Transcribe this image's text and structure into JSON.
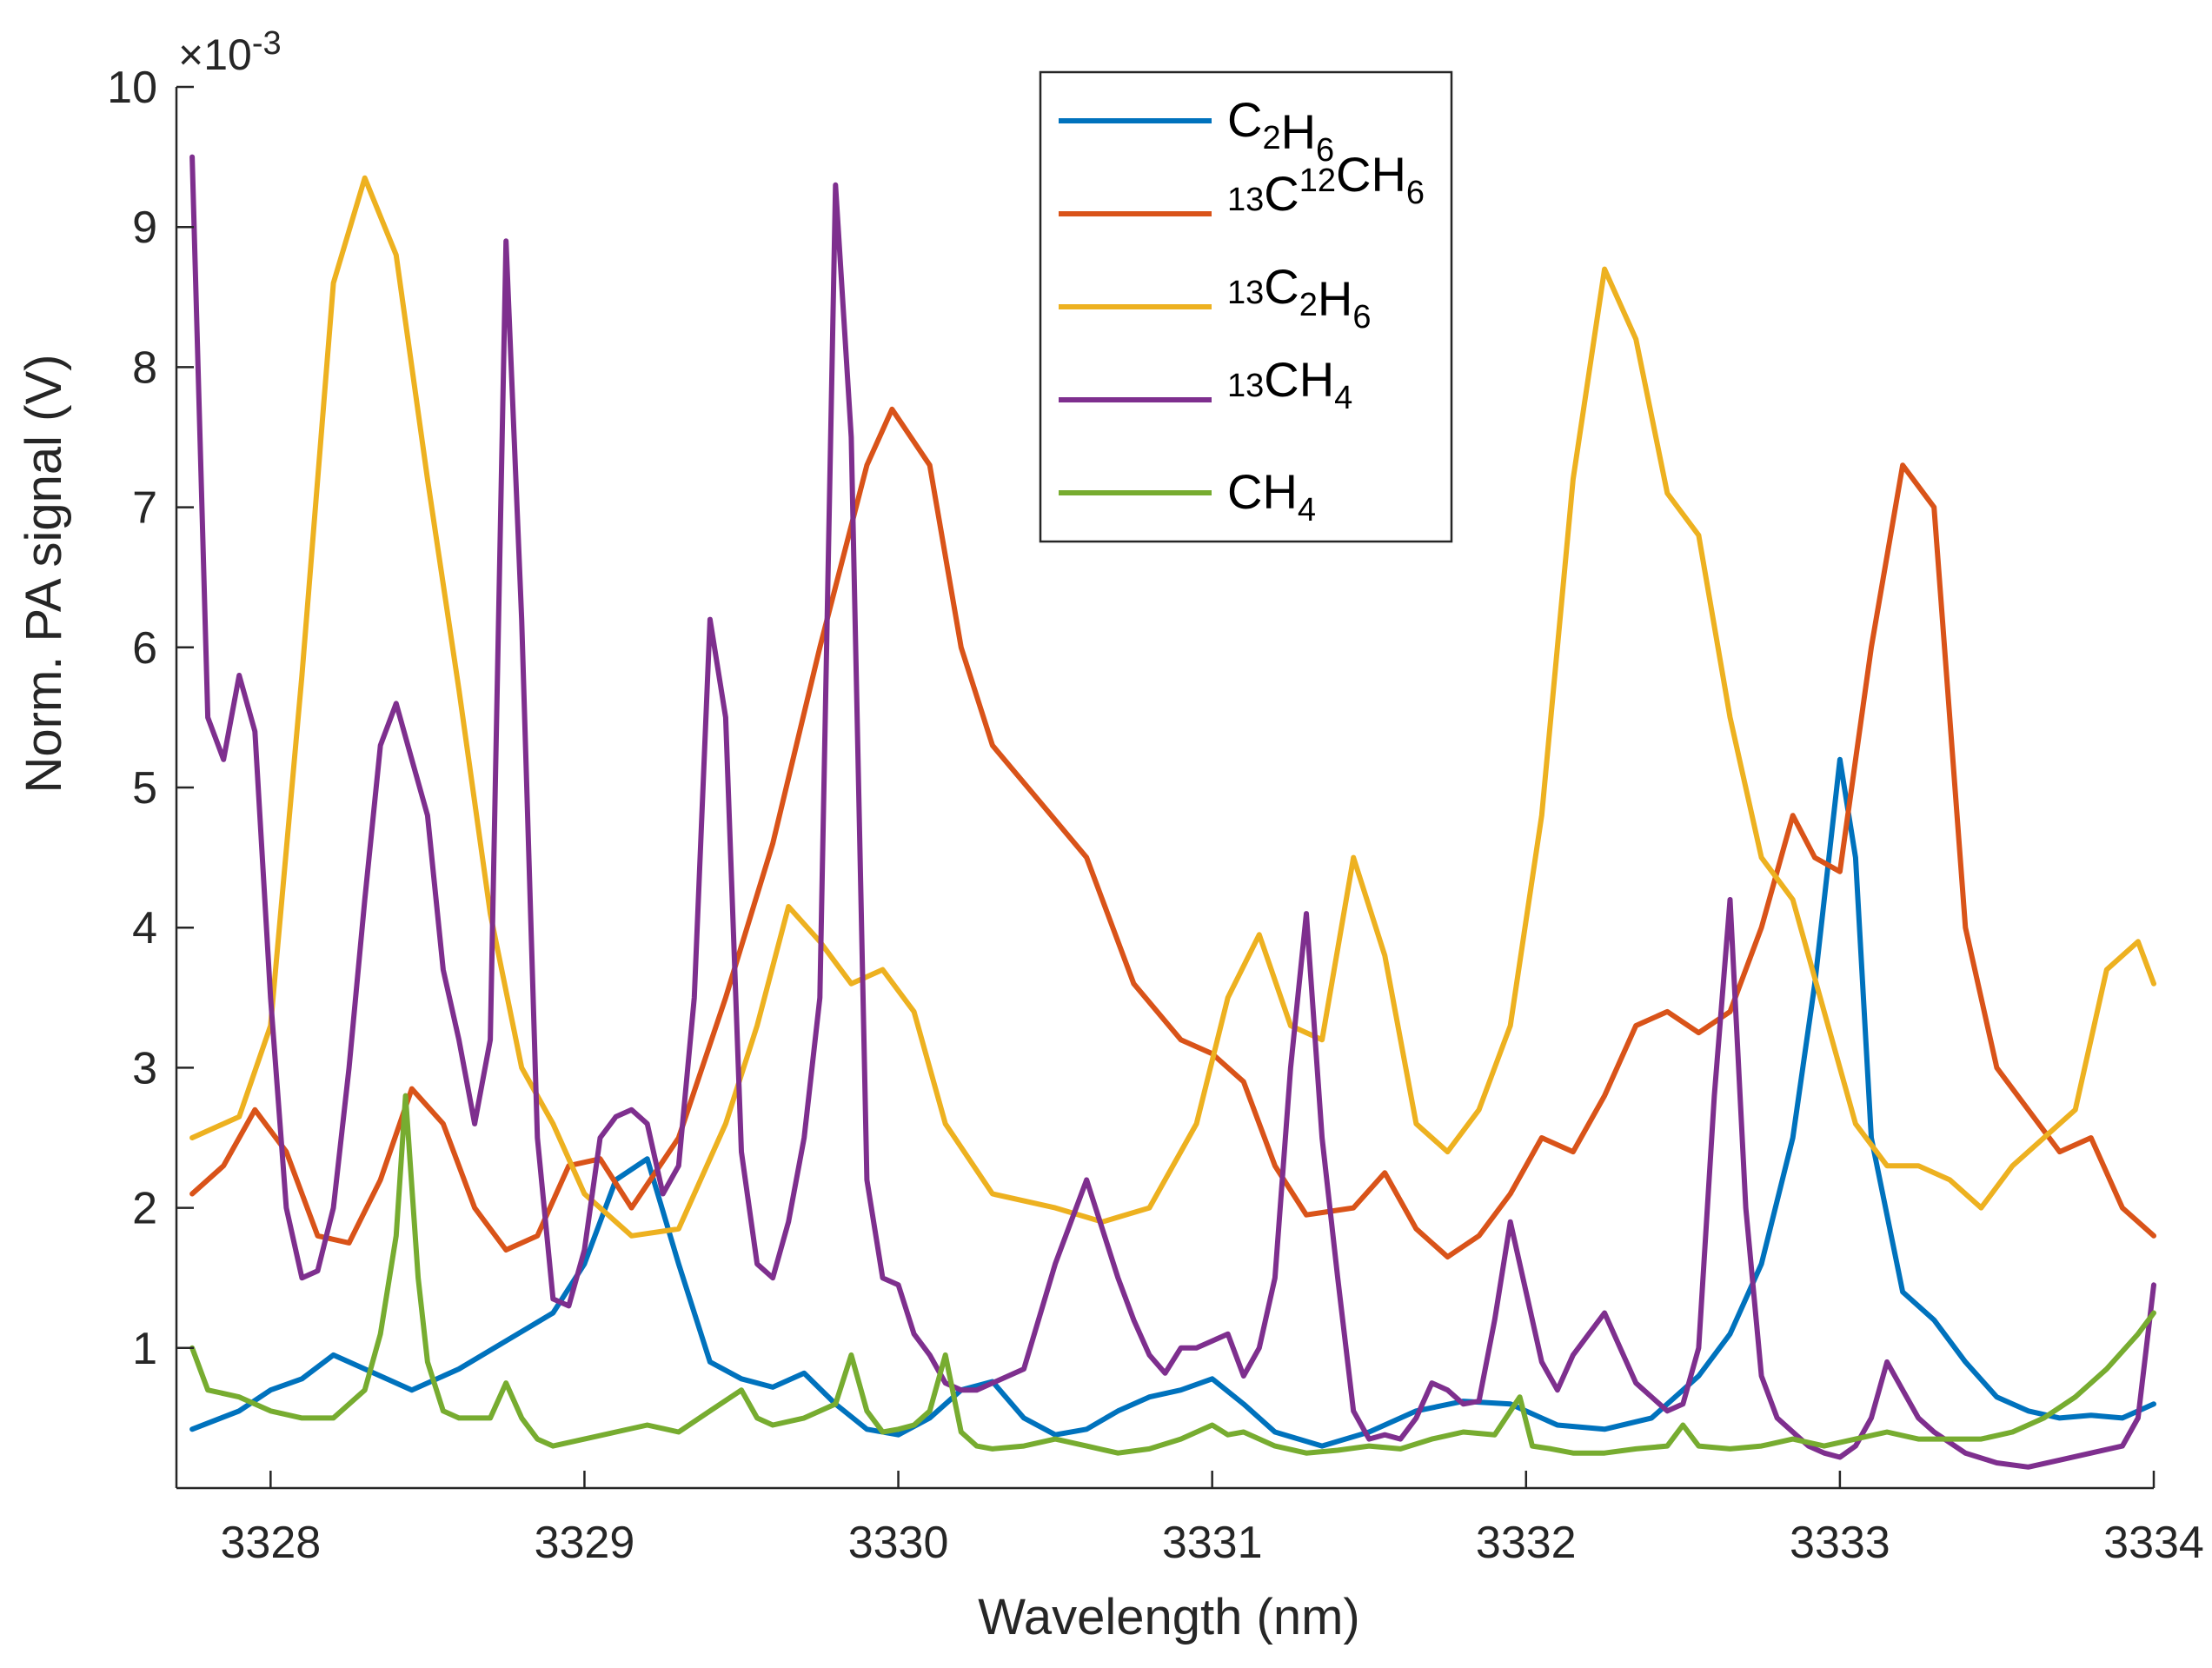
{
  "chart_data": {
    "type": "line",
    "title": "",
    "xlabel": "Wavelength (nm)",
    "ylabel": "Norm. PA signal (V)",
    "y_scale_base": "×10",
    "y_scale_exponent": "-3",
    "xlim": [
      3327.7,
      3334.0
    ],
    "ylim": [
      0,
      10
    ],
    "xticks": [
      3328,
      3329,
      3330,
      3331,
      3332,
      3333,
      3334
    ],
    "yticks": [
      1,
      2,
      3,
      4,
      5,
      6,
      7,
      8,
      9,
      10
    ],
    "legend_position": "top-center",
    "series": [
      {
        "name_base": "C",
        "name_parts": [
          [
            "C",
            ""
          ],
          [
            "2",
            "sub"
          ],
          [
            "H",
            ""
          ],
          [
            "6",
            "sub"
          ]
        ],
        "name": "C2H6",
        "color": "#0072BD",
        "x": [
          3327.75,
          3327.9,
          3328.0,
          3328.1,
          3328.2,
          3328.3,
          3328.45,
          3328.6,
          3328.75,
          3328.9,
          3329.0,
          3329.1,
          3329.2,
          3329.3,
          3329.4,
          3329.5,
          3329.6,
          3329.7,
          3329.8,
          3329.9,
          3330.0,
          3330.1,
          3330.2,
          3330.3,
          3330.4,
          3330.5,
          3330.6,
          3330.7,
          3330.8,
          3330.9,
          3331.0,
          3331.1,
          3331.2,
          3331.35,
          3331.5,
          3331.65,
          3331.8,
          3331.95,
          3332.1,
          3332.25,
          3332.4,
          3332.55,
          3332.65,
          3332.75,
          3332.85,
          3332.92,
          3333.0,
          3333.05,
          3333.1,
          3333.2,
          3333.3,
          3333.4,
          3333.5,
          3333.6,
          3333.7,
          3333.8,
          3333.9,
          3334.0
        ],
        "y": [
          0.42,
          0.55,
          0.7,
          0.78,
          0.95,
          0.85,
          0.7,
          0.85,
          1.05,
          1.25,
          1.6,
          2.2,
          2.35,
          1.6,
          0.9,
          0.78,
          0.72,
          0.82,
          0.6,
          0.42,
          0.38,
          0.5,
          0.7,
          0.76,
          0.5,
          0.38,
          0.42,
          0.55,
          0.65,
          0.7,
          0.78,
          0.6,
          0.4,
          0.3,
          0.4,
          0.55,
          0.62,
          0.6,
          0.45,
          0.42,
          0.5,
          0.8,
          1.1,
          1.6,
          2.5,
          3.6,
          5.2,
          4.5,
          2.5,
          1.4,
          1.2,
          0.9,
          0.65,
          0.55,
          0.5,
          0.52,
          0.5,
          0.6
        ]
      },
      {
        "name": "13C12CH6",
        "name_parts": [
          [
            "13",
            "sup"
          ],
          [
            "C",
            ""
          ],
          [
            "12",
            "sup"
          ],
          [
            "CH",
            ""
          ],
          [
            "6",
            "sub"
          ]
        ],
        "color": "#D95319",
        "x": [
          3327.75,
          3327.85,
          3327.95,
          3328.05,
          3328.15,
          3328.25,
          3328.35,
          3328.45,
          3328.55,
          3328.65,
          3328.75,
          3328.85,
          3328.95,
          3329.05,
          3329.15,
          3329.3,
          3329.45,
          3329.6,
          3329.75,
          3329.9,
          3329.98,
          3330.1,
          3330.2,
          3330.3,
          3330.45,
          3330.6,
          3330.75,
          3330.9,
          3331.0,
          3331.1,
          3331.2,
          3331.3,
          3331.45,
          3331.55,
          3331.65,
          3331.75,
          3331.85,
          3331.95,
          3332.05,
          3332.15,
          3332.25,
          3332.35,
          3332.45,
          3332.55,
          3332.65,
          3332.75,
          3332.85,
          3332.92,
          3333.0,
          3333.1,
          3333.2,
          3333.3,
          3333.4,
          3333.5,
          3333.6,
          3333.7,
          3333.8,
          3333.9,
          3334.0
        ],
        "y": [
          2.1,
          2.3,
          2.7,
          2.4,
          1.8,
          1.75,
          2.2,
          2.85,
          2.6,
          2.0,
          1.7,
          1.8,
          2.3,
          2.35,
          2.0,
          2.5,
          3.5,
          4.6,
          6.0,
          7.3,
          7.7,
          7.3,
          6.0,
          5.3,
          4.9,
          4.5,
          3.6,
          3.2,
          3.1,
          2.9,
          2.3,
          1.95,
          2.0,
          2.25,
          1.85,
          1.65,
          1.8,
          2.1,
          2.5,
          2.4,
          2.8,
          3.3,
          3.4,
          3.25,
          3.4,
          4.0,
          4.8,
          4.5,
          4.4,
          6.0,
          7.3,
          7.0,
          4.0,
          3.0,
          2.7,
          2.4,
          2.5,
          2.0,
          1.8
        ]
      },
      {
        "name": "13C2H6",
        "name_parts": [
          [
            "13",
            "sup"
          ],
          [
            "C",
            ""
          ],
          [
            "2",
            "sub"
          ],
          [
            "H",
            ""
          ],
          [
            "6",
            "sub"
          ]
        ],
        "color": "#EDB120",
        "x": [
          3327.75,
          3327.9,
          3328.0,
          3328.1,
          3328.2,
          3328.3,
          3328.4,
          3328.5,
          3328.6,
          3328.7,
          3328.8,
          3328.9,
          3329.0,
          3329.15,
          3329.3,
          3329.45,
          3329.55,
          3329.65,
          3329.75,
          3329.85,
          3329.95,
          3330.05,
          3330.15,
          3330.3,
          3330.5,
          3330.65,
          3330.8,
          3330.95,
          3331.05,
          3331.15,
          3331.25,
          3331.35,
          3331.45,
          3331.55,
          3331.65,
          3331.75,
          3331.85,
          3331.95,
          3332.05,
          3332.15,
          3332.25,
          3332.35,
          3332.45,
          3332.55,
          3332.65,
          3332.75,
          3332.85,
          3332.95,
          3333.05,
          3333.15,
          3333.25,
          3333.35,
          3333.45,
          3333.55,
          3333.65,
          3333.75,
          3333.85,
          3333.95,
          3334.0
        ],
        "y": [
          2.5,
          2.65,
          3.3,
          5.8,
          8.6,
          9.35,
          8.8,
          7.2,
          5.7,
          4.1,
          3.0,
          2.6,
          2.1,
          1.8,
          1.85,
          2.6,
          3.3,
          4.15,
          3.9,
          3.6,
          3.7,
          3.4,
          2.6,
          2.1,
          2.0,
          1.9,
          2.0,
          2.6,
          3.5,
          3.95,
          3.3,
          3.2,
          4.5,
          3.8,
          2.6,
          2.4,
          2.7,
          3.3,
          4.8,
          7.2,
          8.7,
          8.2,
          7.1,
          6.8,
          5.5,
          4.5,
          4.2,
          3.4,
          2.6,
          2.3,
          2.3,
          2.2,
          2.0,
          2.3,
          2.5,
          2.7,
          3.7,
          3.9,
          3.6
        ]
      },
      {
        "name": "13CH4",
        "name_parts": [
          [
            "13",
            "sup"
          ],
          [
            "CH",
            ""
          ],
          [
            "4",
            "sub"
          ]
        ],
        "color": "#7E2F8E",
        "x": [
          3327.75,
          3327.8,
          3327.85,
          3327.9,
          3327.95,
          3328.0,
          3328.05,
          3328.1,
          3328.15,
          3328.2,
          3328.25,
          3328.3,
          3328.35,
          3328.4,
          3328.45,
          3328.5,
          3328.55,
          3328.6,
          3328.65,
          3328.7,
          3328.75,
          3328.8,
          3328.85,
          3328.9,
          3328.95,
          3329.0,
          3329.05,
          3329.1,
          3329.15,
          3329.2,
          3329.25,
          3329.3,
          3329.35,
          3329.4,
          3329.45,
          3329.5,
          3329.55,
          3329.6,
          3329.65,
          3329.7,
          3329.75,
          3329.8,
          3329.85,
          3329.9,
          3329.95,
          3330.0,
          3330.05,
          3330.1,
          3330.15,
          3330.2,
          3330.25,
          3330.3,
          3330.4,
          3330.5,
          3330.6,
          3330.7,
          3330.75,
          3330.8,
          3330.85,
          3330.9,
          3330.95,
          3331.0,
          3331.05,
          3331.1,
          3331.15,
          3331.2,
          3331.25,
          3331.3,
          3331.35,
          3331.4,
          3331.45,
          3331.5,
          3331.55,
          3331.6,
          3331.65,
          3331.7,
          3331.75,
          3331.8,
          3331.85,
          3331.9,
          3331.95,
          3332.0,
          3332.05,
          3332.1,
          3332.15,
          3332.2,
          3332.25,
          3332.3,
          3332.35,
          3332.4,
          3332.45,
          3332.5,
          3332.55,
          3332.6,
          3332.65,
          3332.7,
          3332.75,
          3332.8,
          3332.85,
          3332.9,
          3332.95,
          3333.0,
          3333.05,
          3333.1,
          3333.15,
          3333.2,
          3333.25,
          3333.3,
          3333.4,
          3333.5,
          3333.6,
          3333.7,
          3333.8,
          3333.9,
          3333.95,
          3334.0
        ],
        "y": [
          9.5,
          5.5,
          5.2,
          5.8,
          5.4,
          3.5,
          2.0,
          1.5,
          1.55,
          2.0,
          3.0,
          4.2,
          5.3,
          5.6,
          5.2,
          4.8,
          3.7,
          3.2,
          2.6,
          3.2,
          8.9,
          6.2,
          2.5,
          1.35,
          1.3,
          1.7,
          2.5,
          2.65,
          2.7,
          2.6,
          2.1,
          2.3,
          3.5,
          6.2,
          5.5,
          2.4,
          1.6,
          1.5,
          1.9,
          2.5,
          3.5,
          9.3,
          7.5,
          2.2,
          1.5,
          1.45,
          1.1,
          0.95,
          0.75,
          0.7,
          0.7,
          0.75,
          0.85,
          1.6,
          2.2,
          1.5,
          1.2,
          0.95,
          0.82,
          1.0,
          1.0,
          1.05,
          1.1,
          0.8,
          1.0,
          1.5,
          3.0,
          4.1,
          2.5,
          1.5,
          0.55,
          0.35,
          0.38,
          0.35,
          0.5,
          0.75,
          0.7,
          0.6,
          0.62,
          1.2,
          1.9,
          1.4,
          0.9,
          0.7,
          0.95,
          1.1,
          1.25,
          1.0,
          0.75,
          0.65,
          0.55,
          0.6,
          1.0,
          2.8,
          4.2,
          2.0,
          0.8,
          0.5,
          0.4,
          0.3,
          0.25,
          0.22,
          0.3,
          0.5,
          0.9,
          0.7,
          0.5,
          0.4,
          0.25,
          0.18,
          0.15,
          0.2,
          0.25,
          0.3,
          0.5,
          1.45
        ]
      },
      {
        "name": "CH4",
        "name_parts": [
          [
            "CH",
            ""
          ],
          [
            "4",
            "sub"
          ]
        ],
        "color": "#77AC30",
        "x": [
          3327.75,
          3327.8,
          3327.9,
          3328.0,
          3328.1,
          3328.2,
          3328.3,
          3328.35,
          3328.4,
          3328.43,
          3328.47,
          3328.5,
          3328.55,
          3328.6,
          3328.7,
          3328.75,
          3328.8,
          3328.85,
          3328.9,
          3329.0,
          3329.1,
          3329.2,
          3329.3,
          3329.4,
          3329.5,
          3329.55,
          3329.6,
          3329.7,
          3329.8,
          3329.85,
          3329.9,
          3329.95,
          3330.0,
          3330.05,
          3330.1,
          3330.15,
          3330.2,
          3330.25,
          3330.3,
          3330.4,
          3330.5,
          3330.6,
          3330.7,
          3330.8,
          3330.9,
          3331.0,
          3331.05,
          3331.1,
          3331.2,
          3331.3,
          3331.4,
          3331.5,
          3331.6,
          3331.7,
          3331.8,
          3331.9,
          3331.98,
          3332.02,
          3332.08,
          3332.15,
          3332.25,
          3332.35,
          3332.45,
          3332.5,
          3332.55,
          3332.65,
          3332.75,
          3332.85,
          3332.95,
          3333.05,
          3333.15,
          3333.25,
          3333.35,
          3333.45,
          3333.55,
          3333.65,
          3333.75,
          3333.85,
          3333.95,
          3334.0
        ],
        "y": [
          1.0,
          0.7,
          0.65,
          0.55,
          0.5,
          0.5,
          0.7,
          1.1,
          1.8,
          2.8,
          1.5,
          0.9,
          0.55,
          0.5,
          0.5,
          0.75,
          0.5,
          0.35,
          0.3,
          0.35,
          0.4,
          0.45,
          0.4,
          0.55,
          0.7,
          0.5,
          0.45,
          0.5,
          0.6,
          0.95,
          0.55,
          0.4,
          0.42,
          0.45,
          0.55,
          0.95,
          0.4,
          0.3,
          0.28,
          0.3,
          0.35,
          0.3,
          0.25,
          0.28,
          0.35,
          0.45,
          0.38,
          0.4,
          0.3,
          0.25,
          0.27,
          0.3,
          0.28,
          0.35,
          0.4,
          0.38,
          0.65,
          0.3,
          0.28,
          0.25,
          0.25,
          0.28,
          0.3,
          0.45,
          0.3,
          0.28,
          0.3,
          0.35,
          0.3,
          0.35,
          0.4,
          0.35,
          0.35,
          0.35,
          0.4,
          0.5,
          0.65,
          0.85,
          1.1,
          1.25
        ]
      }
    ]
  }
}
